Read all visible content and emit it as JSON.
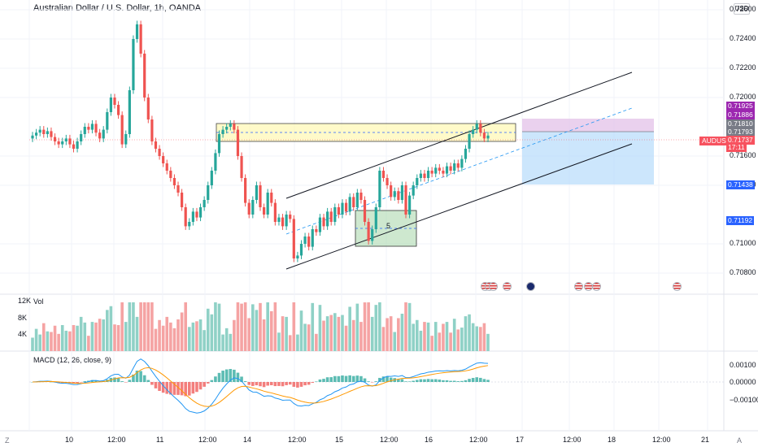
{
  "header": {
    "title": "Australian Dollar / U.S. Dollar, 1h, OANDA",
    "currency": "USD"
  },
  "price_axis": {
    "ticks": [
      "0.72600",
      "0.72400",
      "0.72200",
      "0.72000",
      "0.71600",
      "0.71400",
      "0.71000",
      "0.70800"
    ],
    "tags": [
      {
        "value": "0.71925",
        "color": "#9c27b0"
      },
      {
        "value": "0.71886",
        "color": "#9c27b0"
      },
      {
        "value": "0.71810",
        "color": "#787b86"
      },
      {
        "value": "0.71793",
        "color": "#787b86"
      },
      {
        "value": "0.71737",
        "color": "#f7525f"
      },
      {
        "value": "17:11",
        "color": "#f7525f"
      },
      {
        "value": "0.71438",
        "color": "#2962ff"
      },
      {
        "value": "0.71192",
        "color": "#2962ff"
      }
    ],
    "symbol_tag": "AUDUSD"
  },
  "volume_panel": {
    "label": "Vol",
    "ticks": [
      "12K",
      "8K",
      "4K"
    ]
  },
  "macd_panel": {
    "label": "MACD (12, 26, close, 9)",
    "ticks": [
      "0.00100",
      "0.00000",
      "−0.00100"
    ]
  },
  "time_axis": {
    "labels": [
      "10",
      "12:00",
      "11",
      "12:00",
      "14",
      "12:00",
      "15",
      "12:00",
      "16",
      "12:00",
      "17",
      "12:00",
      "18",
      "12:00",
      "21"
    ]
  },
  "chart": {
    "annotation": "5",
    "colors": {
      "up": "#26a69a",
      "down": "#ef5350",
      "upVol": "#8fd1c6",
      "downVol": "#f5a3a3",
      "macd": "#2196f3",
      "signal": "#ff9800"
    }
  },
  "corners": {
    "left": "Z",
    "right": "A"
  }
}
